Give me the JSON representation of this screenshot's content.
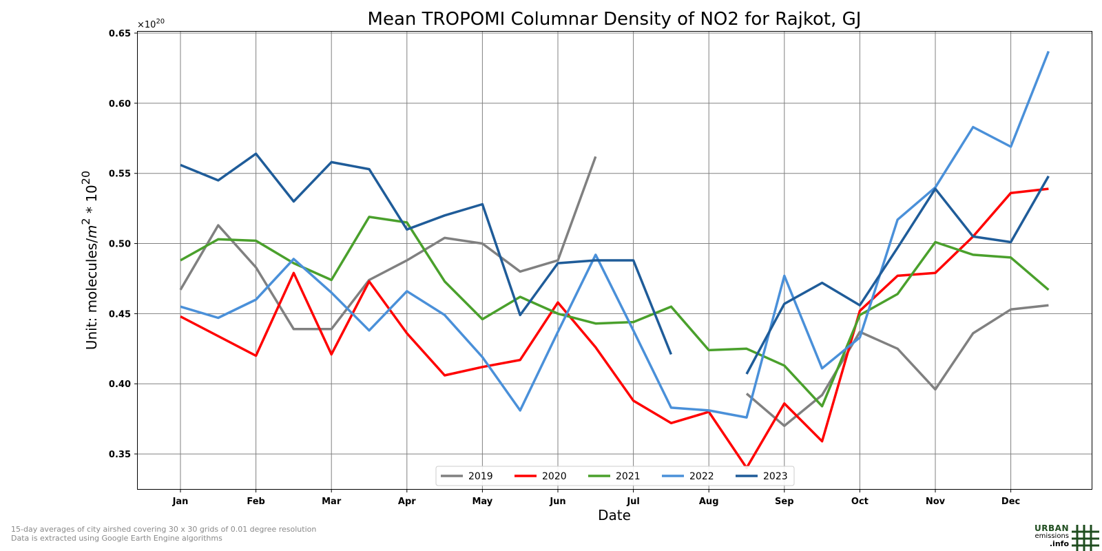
{
  "chart_data": {
    "type": "line",
    "title": "Mean TROPOMI Columnar Density of NO2 for Rajkot, GJ",
    "xlabel": "Date",
    "ylabel_prefix": "Unit: molecules/",
    "ylabel_unit": "m",
    "ylabel_unit_exp": "2",
    "ylabel_mid": " * 10",
    "ylabel_exp": "20",
    "exponent_base": "×10",
    "exponent_power": "20",
    "ylim": [
      0.325,
      0.651
    ],
    "yticks": [
      0.35,
      0.4,
      0.45,
      0.5,
      0.55,
      0.6,
      0.65
    ],
    "ytick_labels": [
      "0.35",
      "0.40",
      "0.45",
      "0.50",
      "0.55",
      "0.60",
      "0.65"
    ],
    "xticks": [
      "Jan",
      "Feb",
      "Mar",
      "Apr",
      "May",
      "Jun",
      "Jul",
      "Aug",
      "Sep",
      "Oct",
      "Nov",
      "Dec"
    ],
    "x_periods": [
      "Jan 1",
      "Jan 16",
      "Feb 1",
      "Feb 16",
      "Mar 1",
      "Mar 16",
      "Apr 1",
      "Apr 16",
      "May 1",
      "May 16",
      "Jun 1",
      "Jun 16",
      "Jul 1",
      "Jul 16",
      "Aug 1",
      "Aug 16",
      "Sep 1",
      "Sep 16",
      "Oct 1",
      "Oct 16",
      "Nov 1",
      "Nov 16",
      "Dec 1",
      "Dec 16"
    ],
    "grid": true,
    "legend_position": "bottom-center",
    "series": [
      {
        "name": "2019",
        "color": "#808080",
        "values": [
          0.467,
          0.513,
          0.483,
          0.439,
          0.439,
          0.474,
          0.488,
          0.504,
          0.5,
          0.48,
          0.488,
          0.562,
          null,
          null,
          null,
          0.393,
          0.37,
          0.392,
          0.437,
          0.425,
          0.396,
          0.436,
          0.453,
          0.456
        ]
      },
      {
        "name": "2020",
        "color": "#ff0000",
        "values": [
          0.448,
          0.434,
          0.42,
          0.479,
          0.421,
          0.473,
          0.436,
          0.406,
          0.412,
          0.417,
          0.458,
          0.426,
          0.388,
          0.372,
          0.38,
          0.34,
          0.386,
          0.359,
          0.452,
          0.477,
          0.479,
          0.505,
          0.536,
          0.539
        ]
      },
      {
        "name": "2021",
        "color": "#4aa02c",
        "values": [
          0.488,
          0.503,
          0.502,
          0.486,
          0.474,
          0.519,
          0.515,
          0.473,
          0.446,
          0.462,
          0.45,
          0.443,
          0.444,
          0.455,
          0.424,
          0.425,
          0.413,
          0.384,
          0.449,
          0.464,
          0.501,
          0.492,
          0.49,
          0.467
        ]
      },
      {
        "name": "2022",
        "color": "#4a90d9",
        "values": [
          0.455,
          0.447,
          0.46,
          0.489,
          0.465,
          0.438,
          0.466,
          0.449,
          0.419,
          0.381,
          0.437,
          0.492,
          0.438,
          0.383,
          0.381,
          0.376,
          0.477,
          0.411,
          0.433,
          0.517,
          0.54,
          0.583,
          0.569,
          0.637
        ]
      },
      {
        "name": "2023",
        "color": "#1f5c99",
        "values": [
          0.556,
          0.545,
          0.564,
          0.53,
          0.558,
          0.553,
          0.51,
          0.52,
          0.528,
          0.449,
          0.486,
          0.488,
          0.488,
          0.421,
          null,
          0.407,
          0.457,
          0.472,
          0.456,
          0.497,
          0.539,
          0.505,
          0.501,
          0.548
        ]
      }
    ]
  },
  "footnote": {
    "line1": "15-day averages of city airshed covering 30 x 30 grids of 0.01 degree resolution",
    "line2": "Data is extracted using Google Earth Engine algorithms"
  },
  "logo": {
    "word1": "URBAN",
    "word2": "emissions",
    "word3": ".info"
  }
}
